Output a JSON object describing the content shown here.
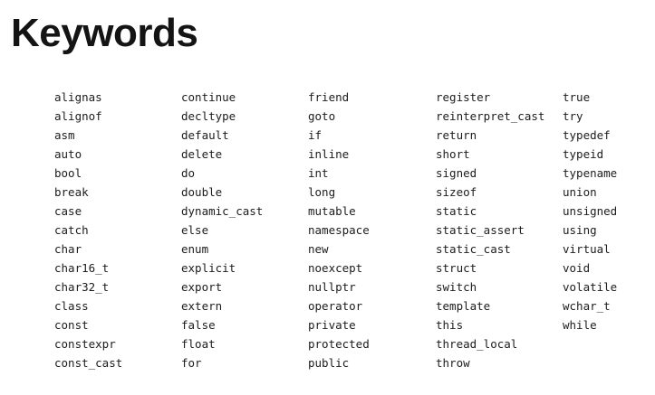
{
  "title": "Keywords",
  "columns": [
    [
      "alignas",
      "alignof",
      "asm",
      "auto",
      "bool",
      "break",
      "case",
      "catch",
      "char",
      "char16_t",
      "char32_t",
      "class",
      "const",
      "constexpr",
      "const_cast"
    ],
    [
      "continue",
      "decltype",
      "default",
      "delete",
      "do",
      "double",
      "dynamic_cast",
      "else",
      "enum",
      "explicit",
      "export",
      "extern",
      "false",
      "float",
      "for"
    ],
    [
      "friend",
      "goto",
      "if",
      "inline",
      "int",
      "long",
      "mutable",
      "namespace",
      "new",
      "noexcept",
      "nullptr",
      "operator",
      "private",
      "protected",
      "public"
    ],
    [
      "register",
      "reinterpret_cast",
      "return",
      "short",
      "signed",
      "sizeof",
      "static",
      "static_assert",
      "static_cast",
      "struct",
      "switch",
      "template",
      "this",
      "thread_local",
      "throw"
    ],
    [
      "true",
      "try",
      "typedef",
      "typeid",
      "typename",
      "union",
      "unsigned",
      "using",
      "virtual",
      "void",
      "volatile",
      "wchar_t",
      "while"
    ]
  ]
}
